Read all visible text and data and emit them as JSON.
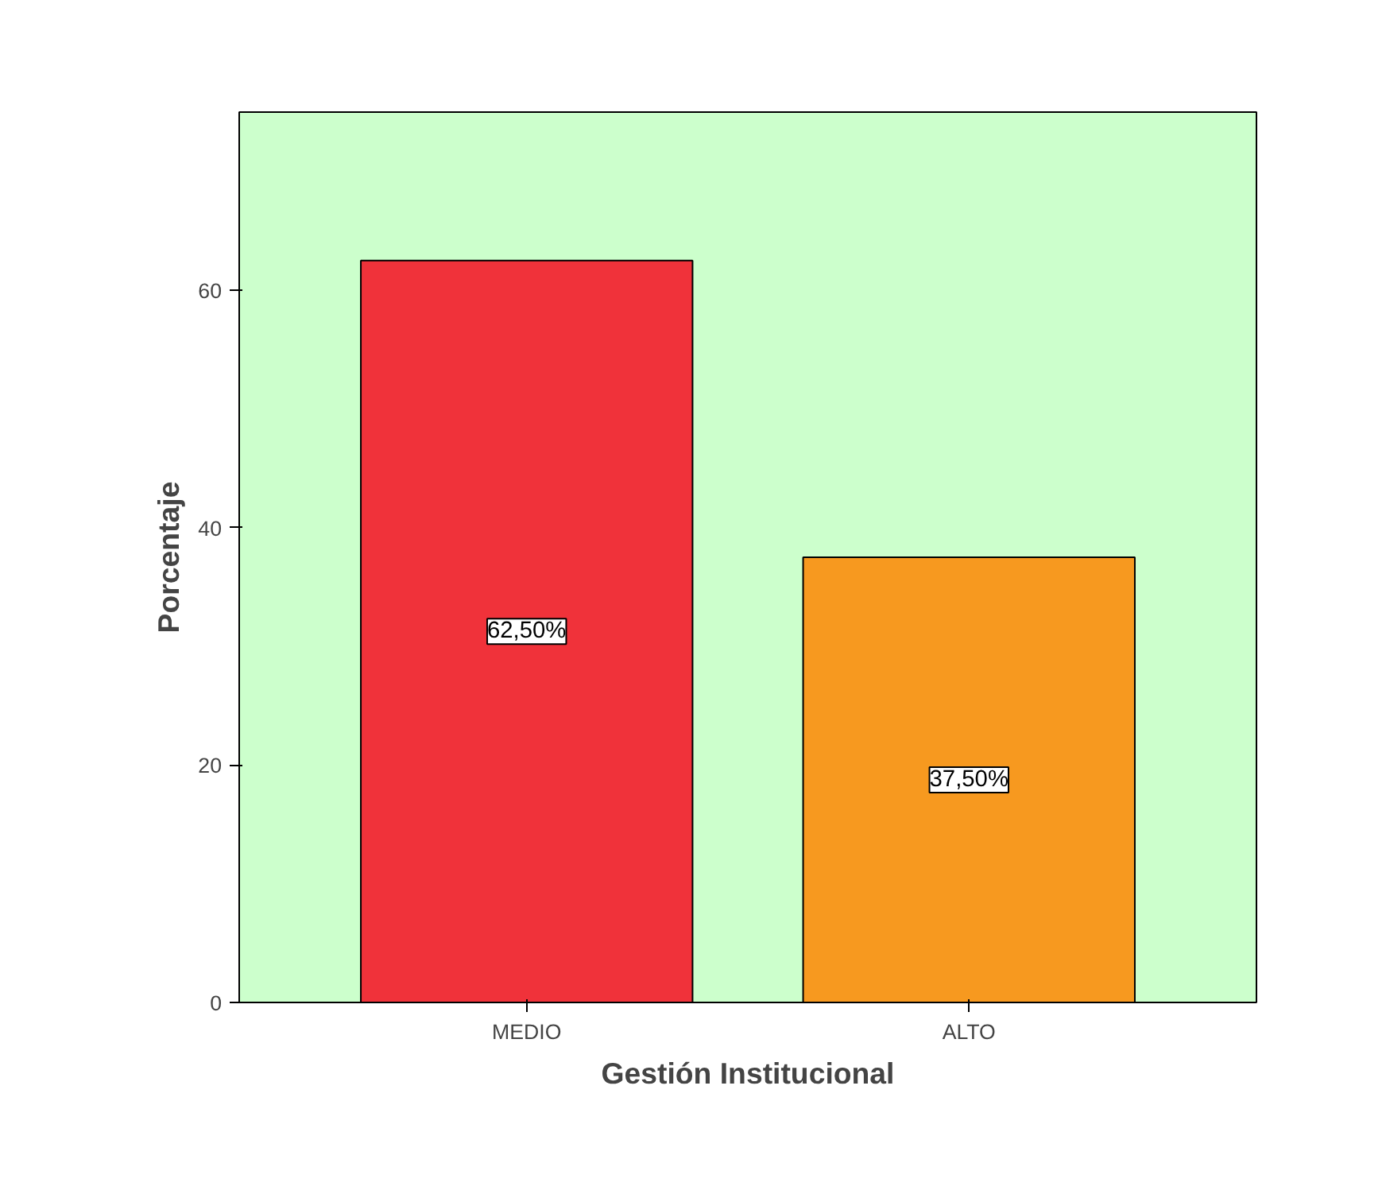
{
  "chart_data": {
    "type": "bar",
    "xlabel": "Gestión Institucional",
    "ylabel": "Porcentaje",
    "categories": [
      "MEDIO",
      "ALTO"
    ],
    "values": [
      62.5,
      37.5
    ],
    "colors": [
      "#f0323a",
      "#f7991f"
    ],
    "value_labels": [
      "62,50%",
      "37,50%"
    ],
    "ylim": [
      0,
      75
    ],
    "yticks": [
      0,
      20,
      40,
      60
    ],
    "grid": false
  }
}
